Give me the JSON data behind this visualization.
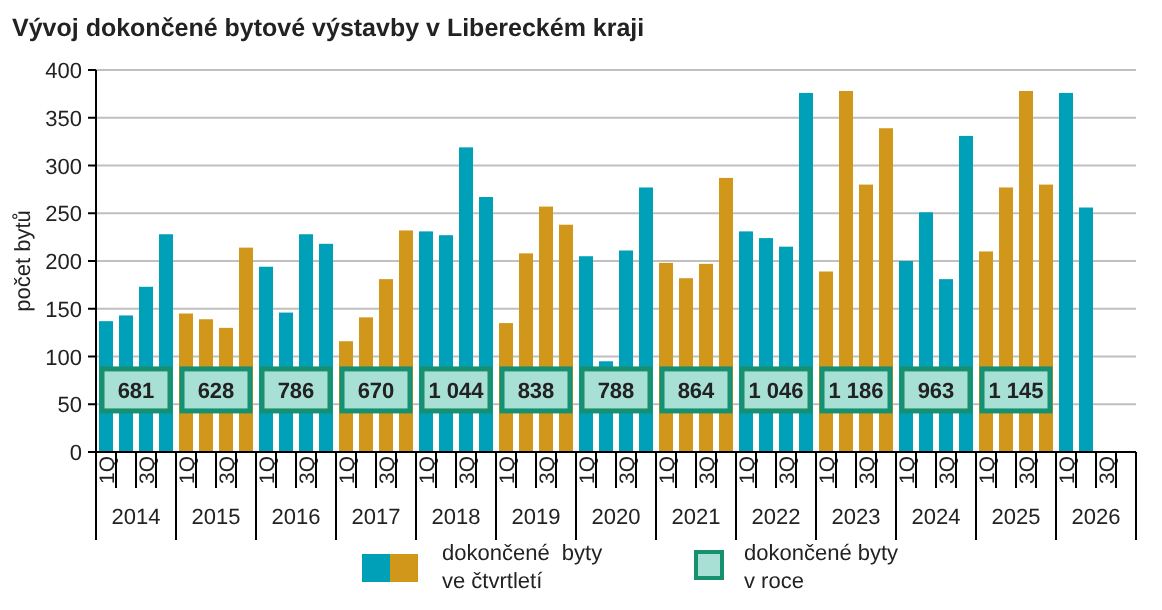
{
  "chart_data": {
    "type": "bar",
    "title": "Vývoj dokončené bytové výstavby v Libereckém kraji",
    "ylabel": "počet bytů",
    "categories": [
      "1Q",
      null,
      "3Q",
      null,
      "1Q",
      null,
      "3Q",
      null,
      "1Q",
      null,
      "3Q",
      null,
      "1Q",
      null,
      "3Q",
      null,
      "1Q",
      null,
      "3Q",
      null,
      "1Q",
      null,
      "3Q",
      null,
      "1Q",
      null,
      "3Q",
      null,
      "1Q",
      null,
      "3Q",
      null,
      "1Q",
      null,
      "3Q",
      null,
      "1Q",
      null,
      "3Q",
      null,
      "1Q",
      null,
      "3Q",
      null,
      "1Q",
      null,
      "3Q",
      null,
      "1Q",
      null,
      "3Q",
      null
    ],
    "series": [
      {
        "name": "dokončené  byty\nve čtvrtletí",
        "colors": [
          "#00a0b8",
          "#00a0b8",
          "#00a0b8",
          "#00a0b8",
          "#d0971a",
          "#d0971a",
          "#d0971a",
          "#d0971a",
          "#00a0b8",
          "#00a0b8",
          "#00a0b8",
          "#00a0b8",
          "#d0971a",
          "#d0971a",
          "#d0971a",
          "#d0971a",
          "#00a0b8",
          "#00a0b8",
          "#00a0b8",
          "#00a0b8",
          "#d0971a",
          "#d0971a",
          "#d0971a",
          "#d0971a",
          "#00a0b8",
          "#00a0b8",
          "#00a0b8",
          "#00a0b8",
          "#d0971a",
          "#d0971a",
          "#d0971a",
          "#d0971a",
          "#00a0b8",
          "#00a0b8",
          "#00a0b8",
          "#00a0b8",
          "#d0971a",
          "#d0971a",
          "#d0971a",
          "#d0971a",
          "#00a0b8",
          "#00a0b8",
          "#00a0b8",
          "#00a0b8",
          "#d0971a",
          "#d0971a",
          "#d0971a",
          "#d0971a",
          "#00a0b8",
          "#00a0b8",
          "#00a0b8",
          "#00a0b8"
        ],
        "values": [
          137,
          143,
          173,
          228,
          145,
          139,
          130,
          214,
          194,
          146,
          228,
          218,
          116,
          141,
          181,
          232,
          231,
          227,
          319,
          267,
          135,
          208,
          257,
          238,
          205,
          95,
          211,
          277,
          198,
          182,
          197,
          287,
          231,
          224,
          215,
          376,
          189,
          378,
          280,
          339,
          200,
          251,
          181,
          331,
          210,
          277,
          378,
          280,
          376,
          256,
          null,
          null
        ]
      }
    ],
    "annotations": [
      "2014",
      "2015",
      "2016",
      "2017",
      "2018",
      "2019",
      "2020",
      "2021",
      "2022",
      "2023",
      "2024",
      "2025",
      "2026",
      "681",
      "628",
      "786",
      "670",
      "1 044",
      "838",
      "788",
      "864",
      "1 046",
      "1 186",
      "963",
      "1 145",
      "dokončené byty\nv roce"
    ],
    "ylim": [
      0,
      400
    ],
    "yticks": [
      0,
      50,
      100,
      150,
      200,
      250,
      300,
      350,
      400
    ],
    "grid": "y",
    "legend": "bottom"
  }
}
